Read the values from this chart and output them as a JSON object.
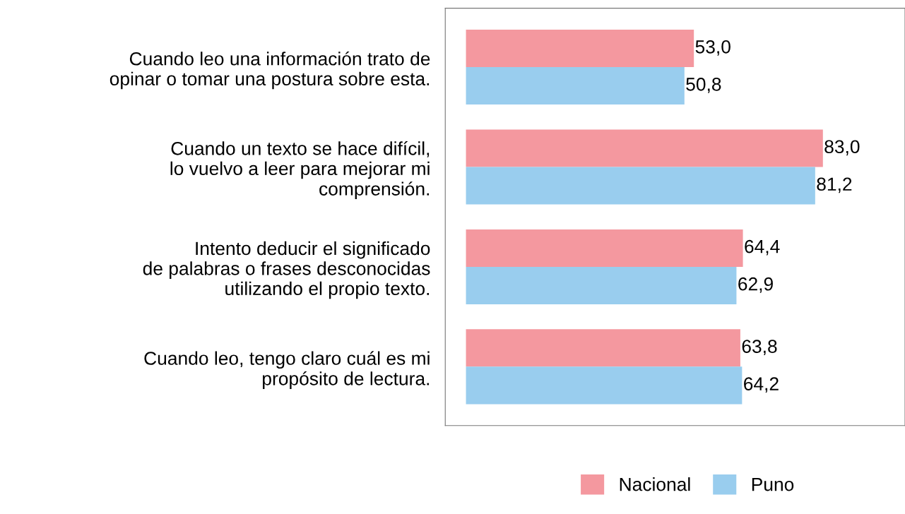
{
  "chart_data": {
    "type": "bar",
    "orientation": "horizontal",
    "categories": [
      "Cuando leo una información trato de\nopinar o tomar una postura sobre esta.",
      "Cuando un texto se hace difícil,\nlo vuelvo a leer para mejorar mi\ncomprensión.",
      "Intento deducir el significado\nde palabras o frases desconocidas\nutilizando el propio texto.",
      "Cuando leo, tengo claro cuál es mi\npropósito de lectura."
    ],
    "series": [
      {
        "name": "Nacional",
        "color": "#f4989f",
        "values": [
          53.0,
          83.0,
          64.4,
          63.8
        ],
        "value_labels": [
          "53,0",
          "83,0",
          "64,4",
          "63,8"
        ]
      },
      {
        "name": "Puno",
        "color": "#99cdee",
        "values": [
          50.8,
          81.2,
          62.9,
          64.2
        ],
        "value_labels": [
          "50,8",
          "81,2",
          "62,9",
          "64,2"
        ]
      }
    ],
    "legend": "bottom",
    "grid": false,
    "tick_labels": "y"
  }
}
